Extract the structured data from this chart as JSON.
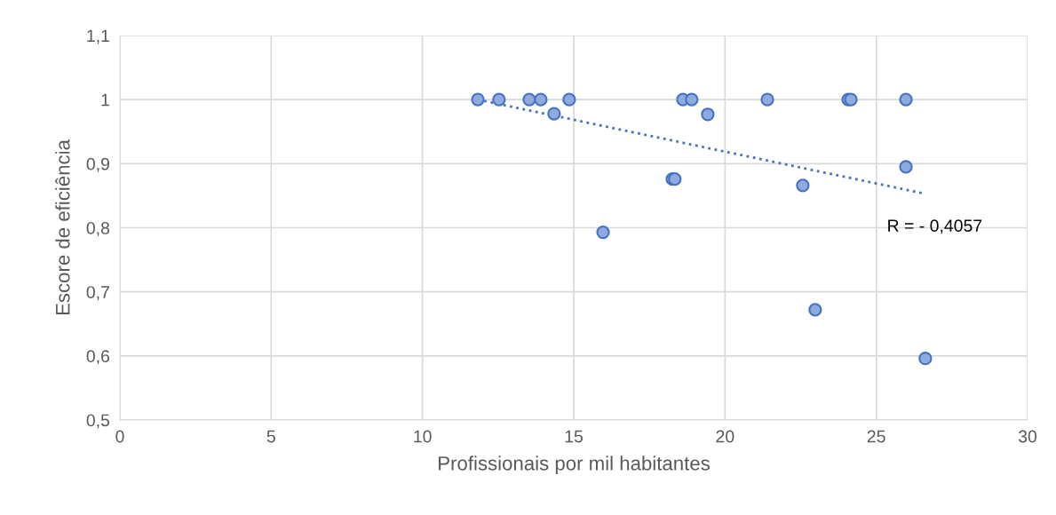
{
  "chart_data": {
    "type": "scatter",
    "xlabel": "Profissionais por mil habitantes",
    "ylabel": "Escore de eficiência",
    "xlim": [
      0,
      30
    ],
    "xticks": [
      0,
      5,
      10,
      15,
      20,
      25,
      30
    ],
    "ylim": [
      0.5,
      1.1
    ],
    "yticks": [
      {
        "value": 0.5,
        "label": "0,5"
      },
      {
        "value": 0.6,
        "label": "0,6"
      },
      {
        "value": 0.7,
        "label": "0,7"
      },
      {
        "value": 0.8,
        "label": "0,8"
      },
      {
        "value": 0.9,
        "label": "0,9"
      },
      {
        "value": 1,
        "label": "1"
      },
      {
        "value": 1.1,
        "label": "1,1"
      }
    ],
    "grid": true,
    "legend": false,
    "marker": "circle",
    "annotations": [
      "R = - 0,4057"
    ],
    "series": [
      {
        "color": "#8faadc",
        "x": [
          11.83,
          12.53,
          13.53,
          13.91,
          14.35,
          14.85,
          15.97,
          18.26,
          18.34,
          18.61,
          18.9,
          19.43,
          21.4,
          22.57,
          22.98,
          24.07,
          24.16,
          25.98,
          25.98,
          26.62
        ],
        "values": [
          1,
          1,
          1,
          1,
          0.978,
          1,
          0.793,
          0.876,
          0.876,
          1,
          1,
          0.977,
          1,
          0.866,
          0.672,
          1,
          1,
          0.895,
          1,
          0.596
        ]
      },
      {
        "type": "line",
        "color": "#4472c4",
        "line_style": "dotted",
        "marker": "none",
        "x": [
          11.83,
          26.62
        ],
        "values": [
          1.0,
          0.853
        ]
      }
    ]
  }
}
